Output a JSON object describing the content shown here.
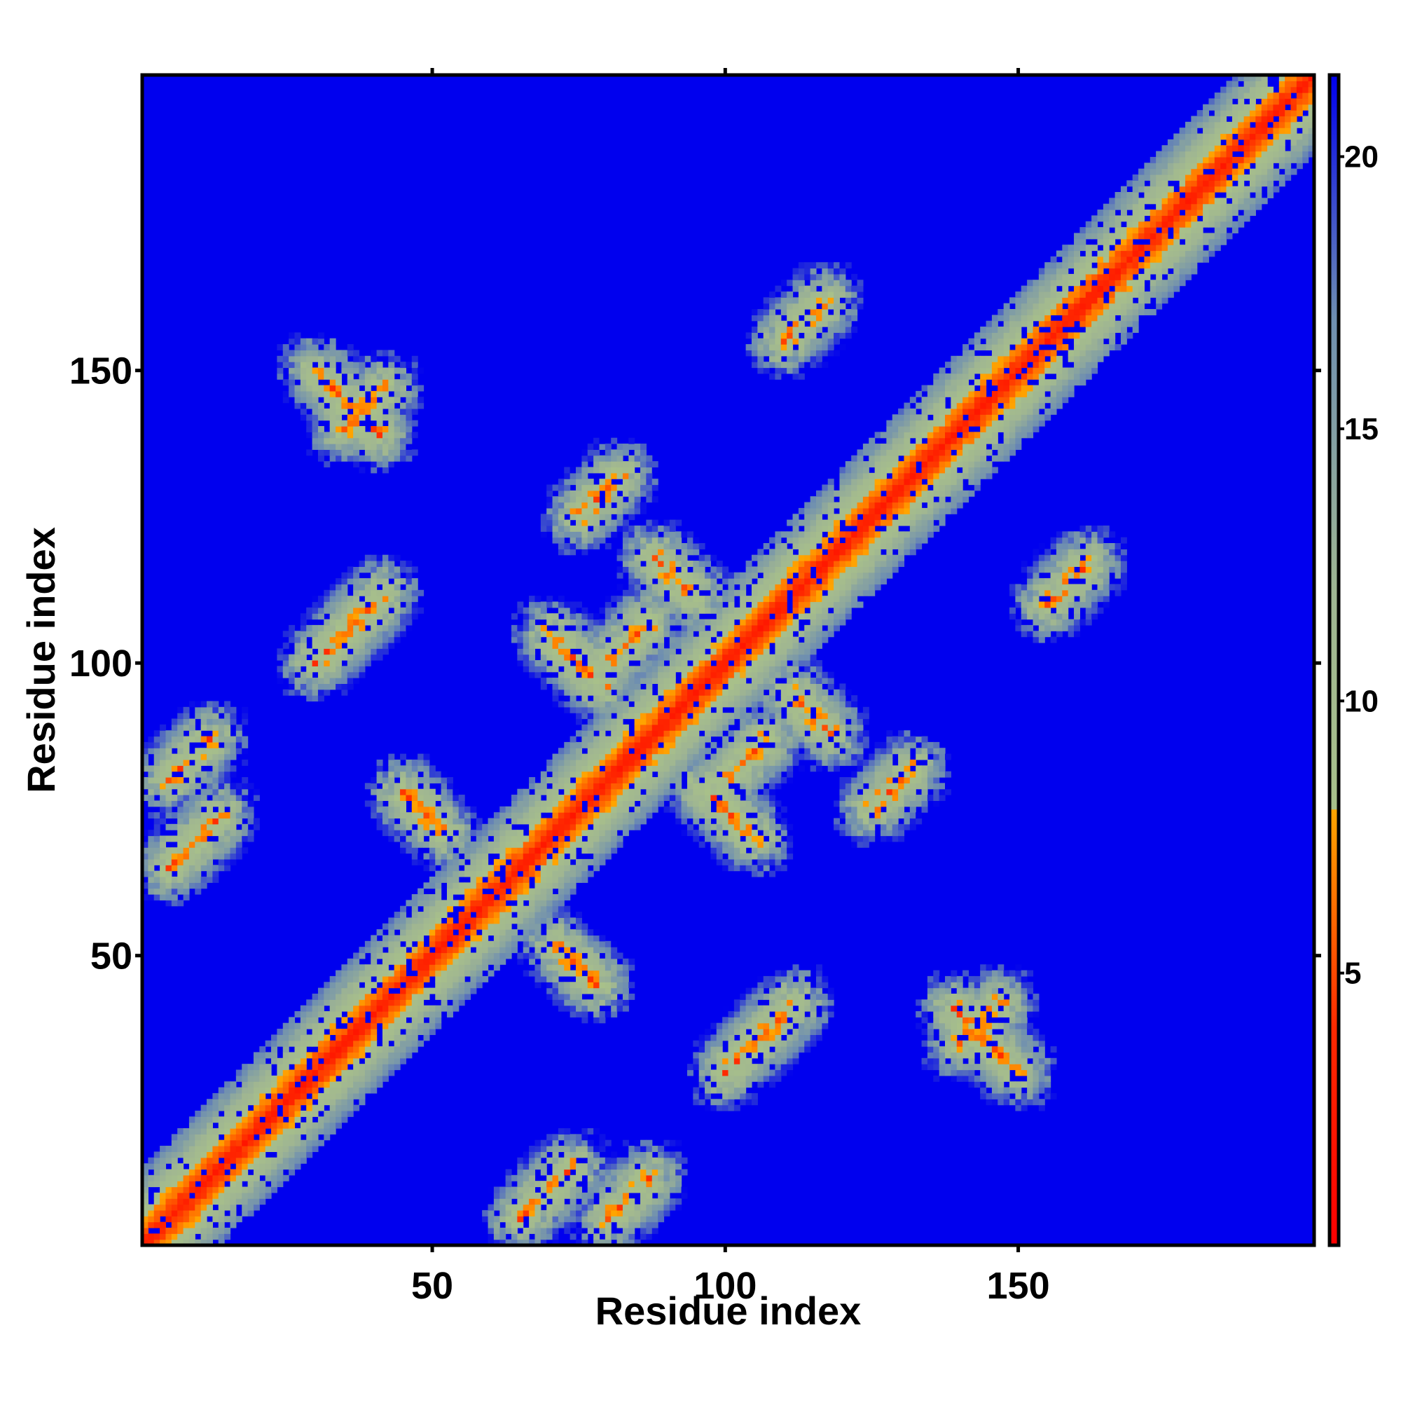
{
  "chart_data": {
    "type": "heatmap",
    "title": "",
    "xlabel": "Residue index",
    "ylabel": "Residue index",
    "n_residues": 200,
    "xlim": [
      1,
      200
    ],
    "ylim": [
      1,
      200
    ],
    "x_ticks": [
      50,
      100,
      150
    ],
    "y_ticks": [
      50,
      100,
      150
    ],
    "colorbar": {
      "ticks": [
        5,
        10,
        15,
        20
      ],
      "range": [
        0,
        21.5
      ],
      "stops": [
        {
          "value": 0,
          "color": "#ff0000"
        },
        {
          "value": 4,
          "color": "#ff2a00"
        },
        {
          "value": 8,
          "color": "#ffa500"
        },
        {
          "value": 8.01,
          "color": "#a8c08a"
        },
        {
          "value": 12,
          "color": "#9fb592"
        },
        {
          "value": 17,
          "color": "#6f8fb0"
        },
        {
          "value": 21.5,
          "color": "#0000ee"
        }
      ]
    },
    "background_color": "#0000ee",
    "contact_features": [
      {
        "kind": "diagonal",
        "from": 1,
        "to": 200
      },
      {
        "kind": "antiparallel",
        "i": 30,
        "j": 150,
        "length": 12
      },
      {
        "kind": "antiparallel",
        "i": 70,
        "j": 105,
        "length": 10
      },
      {
        "kind": "antiparallel",
        "i": 45,
        "j": 78,
        "length": 8
      },
      {
        "kind": "antiparallel",
        "i": 88,
        "j": 118,
        "length": 8
      },
      {
        "kind": "parallel",
        "i": 30,
        "j": 100,
        "length": 10
      },
      {
        "kind": "parallel",
        "i": 5,
        "j": 80,
        "length": 8
      },
      {
        "kind": "parallel",
        "i": 80,
        "j": 100,
        "length": 8
      },
      {
        "kind": "parallel",
        "i": 105,
        "j": 35,
        "length": 8
      },
      {
        "kind": "parallel",
        "i": 140,
        "j": 35,
        "length": 8
      },
      {
        "kind": "parallel",
        "i": 155,
        "j": 110,
        "length": 8
      },
      {
        "kind": "parallel",
        "i": 65,
        "j": 5,
        "length": 10
      },
      {
        "kind": "parallel",
        "i": 125,
        "j": 75,
        "length": 8
      }
    ]
  }
}
